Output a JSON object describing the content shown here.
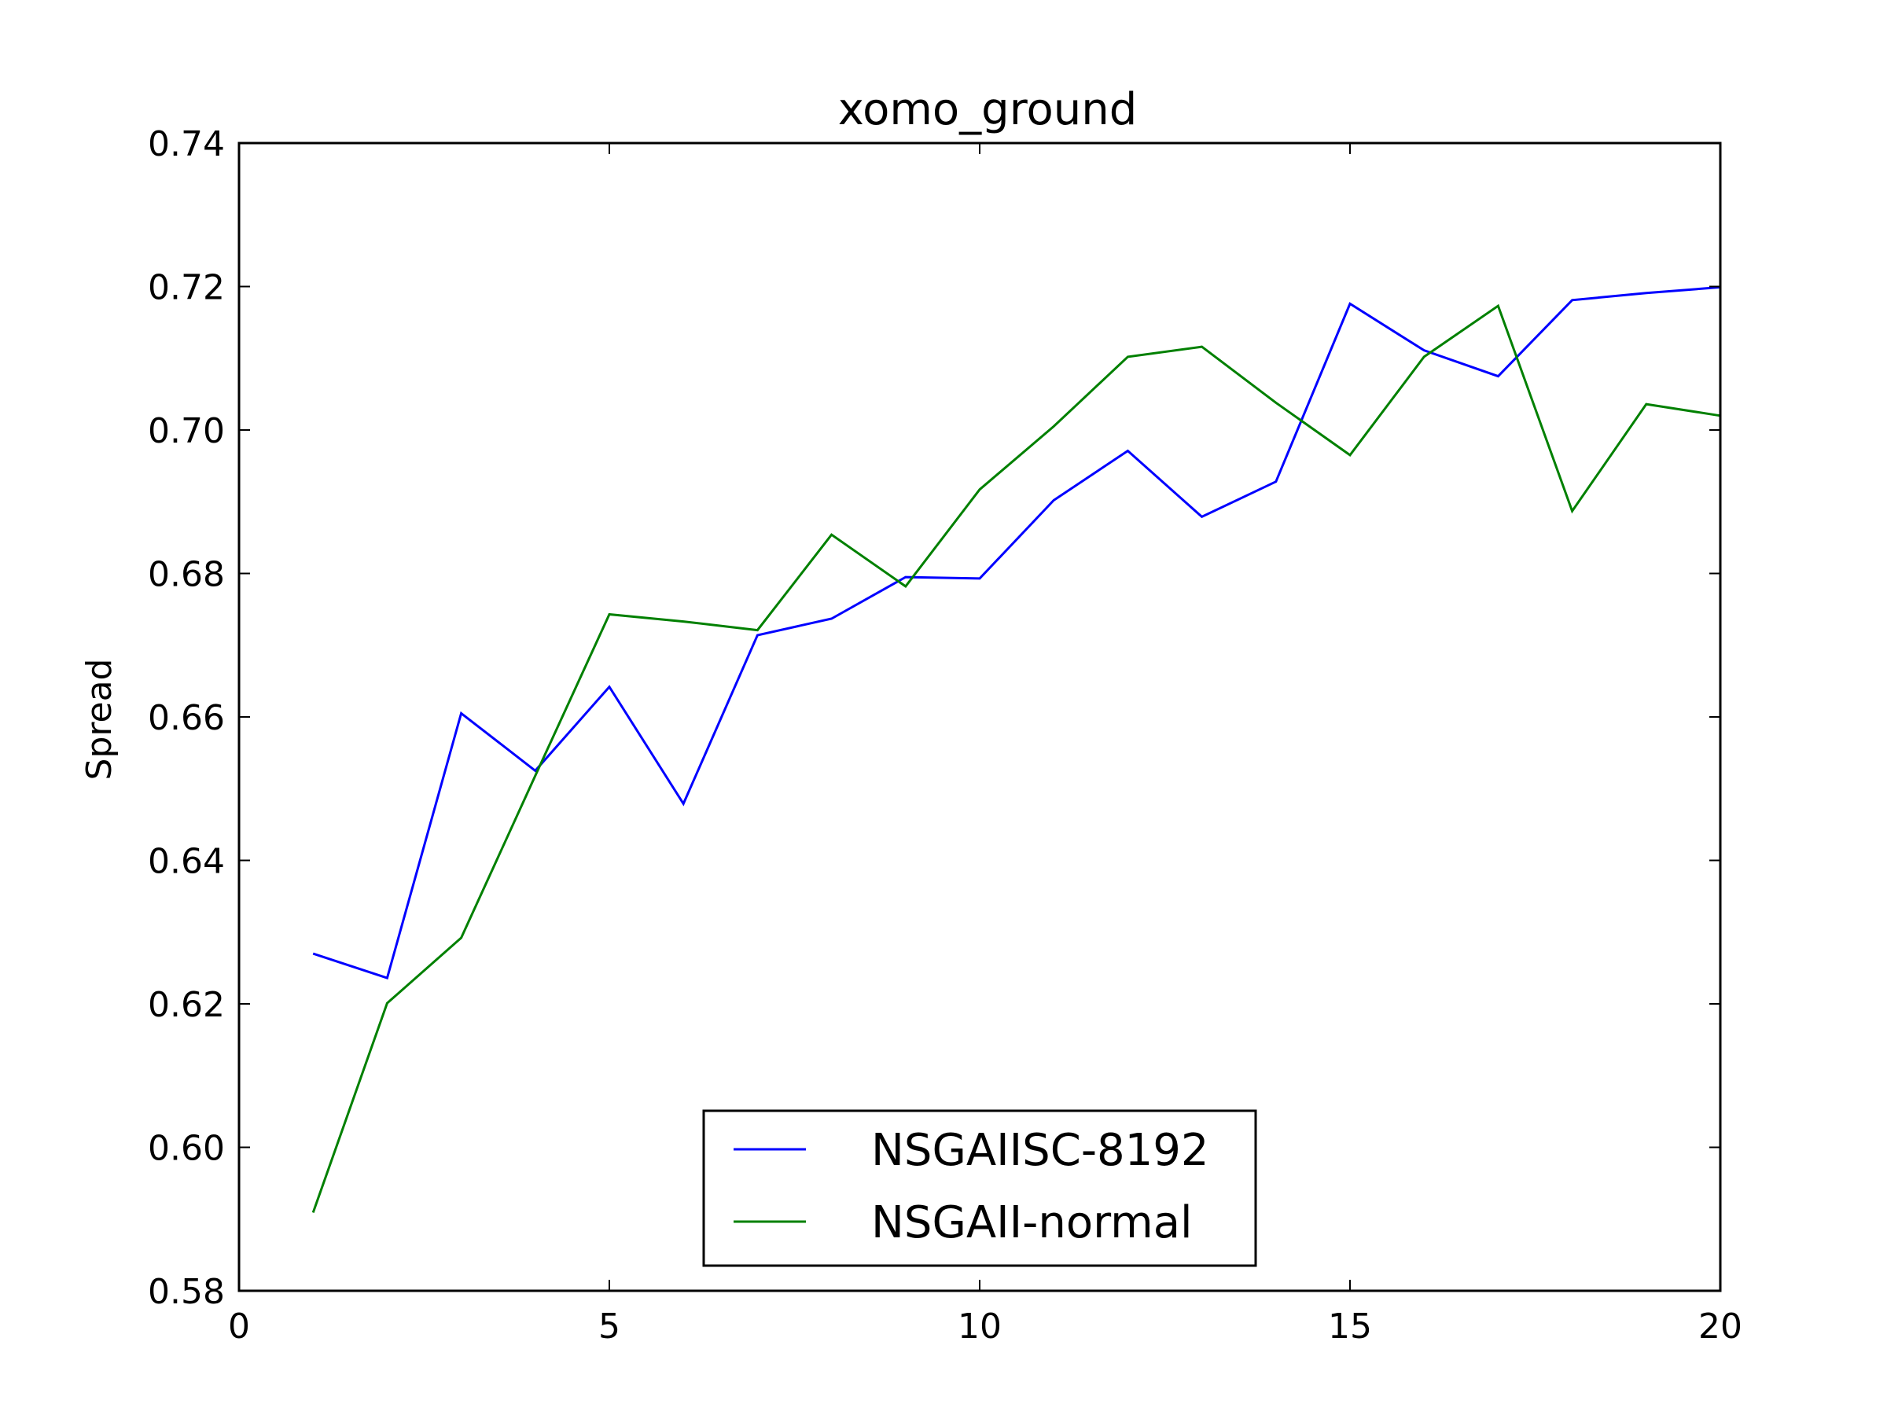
{
  "chart_data": {
    "type": "line",
    "title": "xomo_ground",
    "xlabel": "",
    "ylabel": "Spread",
    "xlim": [
      0,
      20
    ],
    "ylim": [
      0.58,
      0.74
    ],
    "xticks": [
      "0",
      "5",
      "10",
      "15",
      "20"
    ],
    "yticks": [
      "0.58",
      "0.60",
      "0.62",
      "0.64",
      "0.66",
      "0.68",
      "0.70",
      "0.72",
      "0.74"
    ],
    "grid": false,
    "legend_position": "lower center",
    "x": [
      1,
      2,
      3,
      4,
      5,
      6,
      7,
      8,
      9,
      10,
      11,
      12,
      13,
      14,
      15,
      16,
      17,
      18,
      19,
      20
    ],
    "series": [
      {
        "name": "NSGAIISC-8192",
        "color": "#0000ff",
        "values": [
          0.627,
          0.6236,
          0.6605,
          0.6525,
          0.6642,
          0.6479,
          0.6714,
          0.6737,
          0.6795,
          0.6793,
          0.6902,
          0.6971,
          0.6879,
          0.6928,
          0.7176,
          0.7111,
          0.7075,
          0.7181,
          0.7191,
          0.7199
        ]
      },
      {
        "name": "NSGAII-normal",
        "color": "#008000",
        "values": [
          0.5909,
          0.6201,
          0.6292,
          0.6518,
          0.6743,
          0.6733,
          0.6721,
          0.6854,
          0.6782,
          0.6917,
          0.7005,
          0.7102,
          0.7116,
          0.7038,
          0.6965,
          0.7102,
          0.7173,
          0.6887,
          0.7036,
          0.702
        ]
      }
    ]
  }
}
